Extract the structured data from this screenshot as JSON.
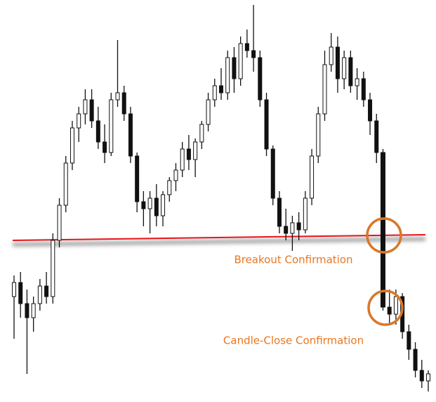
{
  "chart_data": {
    "type": "candlestick",
    "open": [
      150,
      170,
      140,
      120,
      140,
      165,
      150,
      230,
      280,
      340,
      390,
      410,
      430,
      400,
      370,
      355,
      430,
      440,
      410,
      350,
      285,
      275,
      290,
      265,
      295,
      315,
      330,
      360,
      345,
      370,
      395,
      430,
      450,
      440,
      490,
      460,
      510,
      500,
      490,
      430,
      360,
      290,
      250,
      240,
      255,
      245,
      290,
      350,
      410,
      480,
      505,
      460,
      490,
      450,
      460,
      430,
      400,
      355,
      135,
      125,
      150,
      100,
      75,
      45,
      30
    ],
    "high": [
      180,
      185,
      160,
      150,
      175,
      185,
      240,
      290,
      350,
      400,
      420,
      445,
      445,
      420,
      395,
      440,
      515,
      450,
      420,
      355,
      300,
      300,
      310,
      300,
      320,
      340,
      370,
      380,
      375,
      400,
      440,
      460,
      475,
      500,
      505,
      520,
      530,
      565,
      500,
      440,
      365,
      300,
      275,
      265,
      270,
      300,
      360,
      420,
      500,
      525,
      520,
      500,
      500,
      475,
      470,
      440,
      410,
      360,
      160,
      160,
      155,
      110,
      85,
      60,
      45
    ],
    "low": [
      90,
      120,
      40,
      100,
      130,
      140,
      140,
      220,
      270,
      330,
      370,
      395,
      390,
      360,
      340,
      350,
      420,
      400,
      340,
      270,
      250,
      240,
      250,
      250,
      285,
      300,
      320,
      330,
      320,
      360,
      385,
      420,
      430,
      430,
      440,
      450,
      490,
      470,
      420,
      350,
      280,
      240,
      230,
      215,
      230,
      240,
      280,
      340,
      400,
      470,
      440,
      445,
      440,
      430,
      420,
      380,
      340,
      130,
      110,
      110,
      90,
      60,
      35,
      20,
      15
    ],
    "close": [
      170,
      140,
      120,
      140,
      165,
      150,
      230,
      280,
      340,
      390,
      410,
      430,
      400,
      370,
      355,
      430,
      440,
      410,
      350,
      285,
      275,
      290,
      265,
      295,
      315,
      330,
      360,
      345,
      370,
      395,
      430,
      450,
      440,
      490,
      460,
      510,
      500,
      490,
      430,
      360,
      290,
      250,
      240,
      255,
      245,
      290,
      350,
      410,
      480,
      505,
      460,
      490,
      450,
      460,
      430,
      400,
      355,
      135,
      125,
      150,
      100,
      75,
      45,
      30,
      40
    ],
    "ylim": [
      0,
      572
    ],
    "support_line": {
      "color": "#e8151b",
      "values": [
        230,
        238
      ]
    },
    "annotations": [
      {
        "text": "Breakout Confirmation",
        "color": "#e87722"
      },
      {
        "text": "Candle-Close Confirmation",
        "color": "#e87722"
      }
    ]
  }
}
